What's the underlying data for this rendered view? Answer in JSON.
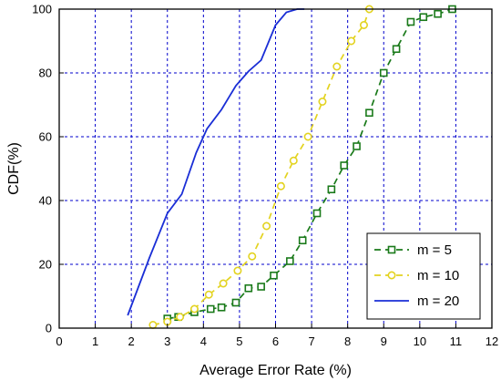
{
  "chart_data": {
    "type": "line",
    "title": "",
    "xlabel": "Average Error Rate (%)",
    "ylabel": "CDF(%)",
    "xlim": [
      0,
      12
    ],
    "ylim": [
      0,
      100
    ],
    "xticks": [
      0,
      1,
      2,
      3,
      4,
      5,
      6,
      7,
      8,
      9,
      10,
      11,
      12
    ],
    "yticks": [
      0,
      20,
      40,
      60,
      80,
      100
    ],
    "grid": true,
    "grid_color": "#0000cc",
    "legend_position": "bottom-right",
    "series": [
      {
        "name": "m = 5",
        "color": "#1a7a1a",
        "line_style": "dashed",
        "marker": "square",
        "x": [
          3.0,
          3.3,
          3.75,
          4.2,
          4.5,
          4.9,
          5.25,
          5.6,
          5.95,
          6.4,
          6.75,
          7.15,
          7.55,
          7.9,
          8.25,
          8.6,
          9.0,
          9.35,
          9.75,
          10.1,
          10.5,
          10.9
        ],
        "y": [
          3,
          3.5,
          5,
          6,
          6.5,
          8,
          12.5,
          13,
          16.5,
          21,
          27.5,
          36,
          43.5,
          51,
          57,
          67.5,
          80,
          87.5,
          96,
          97.5,
          98.5,
          100
        ]
      },
      {
        "name": "m = 10",
        "color": "#e3d320",
        "line_style": "dashed",
        "marker": "circle",
        "x": [
          2.6,
          3.0,
          3.35,
          3.75,
          4.15,
          4.55,
          4.95,
          5.35,
          5.75,
          6.15,
          6.5,
          6.9,
          7.3,
          7.7,
          8.1,
          8.45,
          8.6
        ],
        "y": [
          1,
          2,
          3.5,
          6,
          10.5,
          14,
          18,
          22.5,
          32,
          44.5,
          52.5,
          60,
          71,
          82,
          90,
          95,
          100
        ]
      },
      {
        "name": "m = 20",
        "color": "#1a2ed6",
        "line_style": "solid",
        "marker": "none",
        "x": [
          1.9,
          2.5,
          3.0,
          3.4,
          3.8,
          4.1,
          4.5,
          4.9,
          5.25,
          5.6,
          6.0,
          6.3,
          6.6,
          6.8
        ],
        "y": [
          4,
          22,
          36,
          42,
          55,
          62.5,
          68.5,
          76,
          80.5,
          84,
          95,
          99,
          100,
          100
        ]
      }
    ]
  }
}
